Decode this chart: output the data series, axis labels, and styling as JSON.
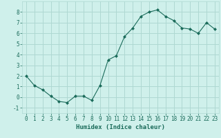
{
  "x": [
    0,
    1,
    2,
    3,
    4,
    5,
    6,
    7,
    8,
    9,
    10,
    11,
    12,
    13,
    14,
    15,
    16,
    17,
    18,
    19,
    20,
    21,
    22,
    23
  ],
  "y": [
    2.0,
    1.1,
    0.7,
    0.1,
    -0.4,
    -0.5,
    0.1,
    0.1,
    -0.3,
    1.1,
    3.5,
    3.9,
    5.7,
    6.5,
    7.6,
    8.0,
    8.2,
    7.6,
    7.2,
    6.5,
    6.4,
    6.0,
    7.0,
    6.4
  ],
  "line_color": "#1a6b5a",
  "marker": "D",
  "marker_size": 2.0,
  "bg_color": "#cff0eb",
  "grid_color": "#aed8d2",
  "xlabel": "Humidex (Indice chaleur)",
  "ylabel": "",
  "xlim": [
    -0.5,
    23.5
  ],
  "ylim": [
    -1.5,
    9.0
  ],
  "yticks": [
    -1,
    0,
    1,
    2,
    3,
    4,
    5,
    6,
    7,
    8
  ],
  "xticks": [
    0,
    1,
    2,
    3,
    4,
    5,
    6,
    7,
    8,
    9,
    10,
    11,
    12,
    13,
    14,
    15,
    16,
    17,
    18,
    19,
    20,
    21,
    22,
    23
  ],
  "tick_fontsize": 5.5,
  "xlabel_fontsize": 6.5,
  "linewidth": 0.8
}
